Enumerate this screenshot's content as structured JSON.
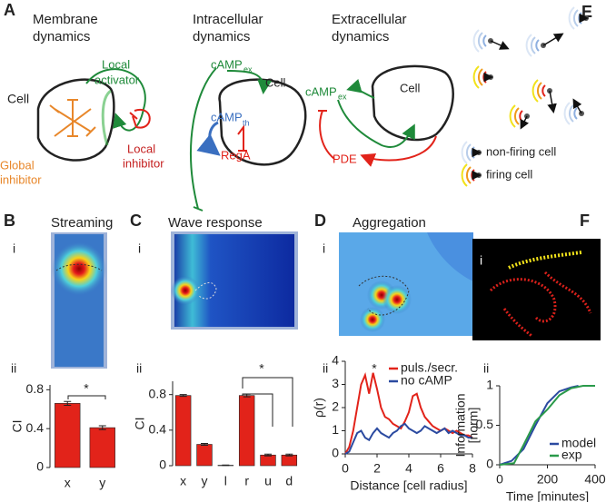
{
  "panel_a": {
    "label": "A",
    "membrane_title": [
      "Membrane",
      "dynamics"
    ],
    "intracellular_title": [
      "Intracellular",
      "dynamics"
    ],
    "extracellular_title": [
      "Extracellular",
      "dynamics"
    ],
    "membrane_cell": "Cell",
    "local_activator": [
      "Local",
      "activator"
    ],
    "global_inhibitor": [
      "Global",
      "inhibitor"
    ],
    "local_inhibitor": [
      "Local",
      "inhibitor"
    ],
    "intra_camp": "cAMP",
    "intra_camp_sub": "ex",
    "intra_cell": "Cell",
    "camp_th": "cAMP",
    "camp_th_sub": "th",
    "rega": "RegA",
    "extra_camp": "cAMP",
    "extra_camp_sub": "ex",
    "extra_cell": "Cell",
    "pde": "PDE"
  },
  "panel_b": {
    "label": "B",
    "title": "Streaming",
    "sub_i": "i",
    "sub_ii": "ii"
  },
  "panel_c": {
    "label": "C",
    "title": "Wave response",
    "sub_i": "i",
    "sub_ii": "ii"
  },
  "panel_d": {
    "label": "D",
    "title": "Aggregation",
    "sub_i": "i",
    "sub_ii": "ii"
  },
  "panel_e": {
    "label": "E",
    "non_firing": "non-firing cell",
    "firing": "firing cell"
  },
  "panel_f": {
    "label": "F",
    "sub_i": "i",
    "sub_ii": "ii"
  },
  "chart_data": [
    {
      "type": "bar",
      "categories": [
        "x",
        "y"
      ],
      "values": [
        0.66,
        0.41
      ],
      "errors": [
        0.02,
        0.02
      ],
      "color": "#e2231a",
      "ylabel": "CI",
      "ylim": [
        0,
        0.85
      ],
      "yticks": [
        0,
        0.4,
        0.8
      ],
      "annotation": "*"
    },
    {
      "type": "bar",
      "categories": [
        "x",
        "y",
        "l",
        "r",
        "u",
        "d"
      ],
      "values": [
        0.79,
        0.24,
        0.005,
        0.79,
        0.12,
        0.12
      ],
      "errors": [
        0.01,
        0.01,
        0.003,
        0.015,
        0.01,
        0.01
      ],
      "color": "#e2231a",
      "ylabel": "CI",
      "ylim": [
        0,
        0.95
      ],
      "yticks": [
        0,
        0.4,
        0.8
      ],
      "annotation": "*"
    },
    {
      "type": "line",
      "x": [
        0,
        0.25,
        0.5,
        0.75,
        1,
        1.25,
        1.5,
        1.75,
        2,
        2.25,
        2.5,
        2.75,
        3,
        3.25,
        3.5,
        3.75,
        4,
        4.25,
        4.5,
        4.75,
        5,
        5.25,
        5.5,
        5.75,
        6,
        6.25,
        6.5,
        6.75,
        7,
        7.25,
        7.5,
        7.75,
        8
      ],
      "series": [
        {
          "name": "puls./secr.",
          "color": "#e2231a",
          "values": [
            0,
            0.3,
            1.0,
            2.0,
            3.0,
            3.4,
            2.6,
            3.5,
            2.8,
            2.0,
            1.6,
            1.5,
            1.3,
            1.2,
            1.1,
            1.4,
            1.8,
            2.5,
            2.6,
            2.0,
            1.6,
            1.4,
            1.2,
            1.1,
            1.0,
            1.1,
            1.0,
            0.9,
            1.0,
            0.9,
            0.8,
            0.8,
            0.7
          ]
        },
        {
          "name": "no cAMP",
          "color": "#2b4aa0",
          "values": [
            0,
            0.1,
            0.5,
            0.9,
            1.0,
            0.7,
            0.6,
            0.9,
            1.1,
            0.9,
            0.8,
            0.7,
            0.9,
            1.0,
            1.2,
            1.3,
            1.1,
            1.0,
            0.9,
            1.0,
            1.2,
            1.1,
            1.0,
            0.9,
            1.0,
            1.1,
            0.9,
            1.0,
            0.9,
            0.8,
            0.8,
            0.7,
            0.7
          ]
        }
      ],
      "xlabel": "Distance [cell radius]",
      "ylabel": "ρ(r)",
      "xlim": [
        0,
        8
      ],
      "ylim": [
        0,
        4
      ],
      "xticks": [
        0,
        2,
        4,
        6,
        8
      ],
      "yticks": [
        0,
        1,
        2,
        3,
        4
      ],
      "legend": "upper right",
      "annotation": "*"
    },
    {
      "type": "line",
      "series": [
        {
          "name": "model",
          "color": "#2b4aa0",
          "x": [
            0,
            50,
            100,
            150,
            200,
            250,
            300,
            330
          ],
          "values": [
            0,
            0.05,
            0.2,
            0.5,
            0.78,
            0.93,
            0.98,
            1.0
          ]
        },
        {
          "name": "exp",
          "color": "#2a9a4a",
          "x": [
            0,
            60,
            100,
            150,
            200,
            250,
            300,
            350,
            400
          ],
          "values": [
            0,
            0.02,
            0.25,
            0.55,
            0.7,
            0.88,
            0.97,
            1.0,
            1.0
          ]
        }
      ],
      "xlabel": "Time [minutes]",
      "ylabel": [
        "Information",
        "[norm]"
      ],
      "xlim": [
        0,
        400
      ],
      "ylim": [
        0,
        1
      ],
      "xticks": [
        0,
        200,
        400
      ],
      "yticks": [
        0,
        0.5,
        1
      ],
      "legend": "lower right"
    }
  ]
}
